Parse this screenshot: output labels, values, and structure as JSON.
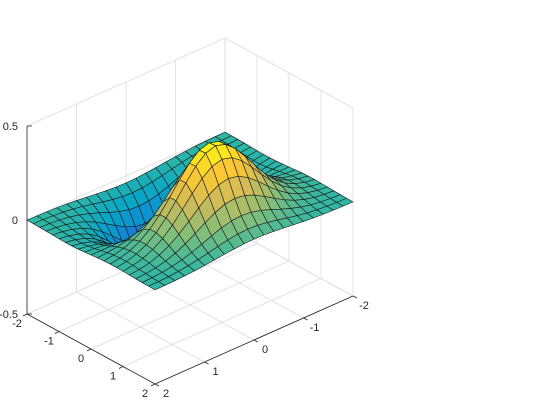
{
  "chart_data": {
    "type": "surface",
    "function": "z = x * exp(-x^2 - y^2)",
    "x": [
      -2.0,
      -1.8,
      -1.6,
      -1.4,
      -1.2,
      -1.0,
      -0.8,
      -0.6,
      -0.4,
      -0.2,
      0.0,
      0.2,
      0.4,
      0.6,
      0.8,
      1.0,
      1.2,
      1.4,
      1.6,
      1.8,
      2.0
    ],
    "y": [
      -2.0,
      -1.8,
      -1.6,
      -1.4,
      -1.2,
      -1.0,
      -0.8,
      -0.6,
      -0.4,
      -0.2,
      0.0,
      0.2,
      0.4,
      0.6,
      0.8,
      1.0,
      1.2,
      1.4,
      1.6,
      1.8,
      2.0
    ],
    "xlim": [
      -2,
      2
    ],
    "ylim": [
      -2,
      2
    ],
    "zlim": [
      -0.5,
      0.5
    ],
    "x_ticks": [
      -2,
      -1,
      0,
      1,
      2
    ],
    "y_ticks": [
      -2,
      -1,
      0,
      1,
      2
    ],
    "z_ticks": [
      -0.5,
      0,
      0.5
    ],
    "x_tick_labels": [
      "-2",
      "-1",
      "0",
      "1",
      "2"
    ],
    "y_tick_labels": [
      "-2",
      "-1",
      "0",
      "1",
      "2"
    ],
    "z_tick_labels": [
      "-0.5",
      "0",
      "0.5"
    ],
    "colormap": "parula",
    "colormap_stops": [
      "#352a87",
      "#0f5cdd",
      "#1481d6",
      "#06a4ca",
      "#2eb7a4",
      "#87bf77",
      "#d1bb59",
      "#fec832",
      "#f9fb0e"
    ],
    "edge_color": "#1a1a1a",
    "grid": true,
    "box": false,
    "title": "",
    "xlabel": "",
    "ylabel": "",
    "zlabel": ""
  }
}
